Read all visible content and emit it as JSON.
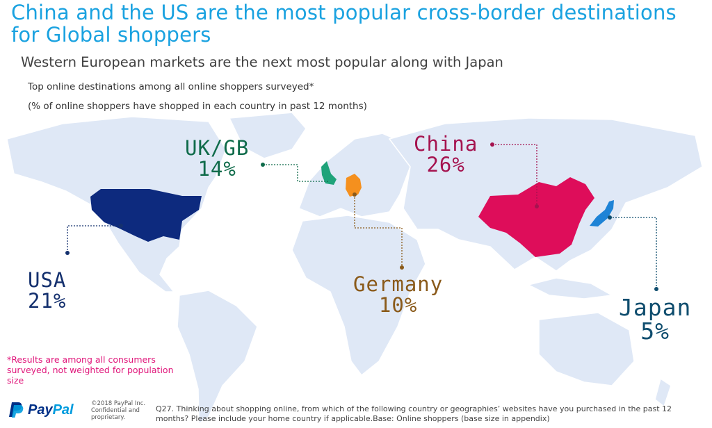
{
  "title": "China and the US are the most popular cross-border destinations for Global shoppers",
  "subtitle": "Western European markets are the next most popular along with Japan",
  "notes": {
    "line1": "Top online destinations among all online shoppers surveyed*",
    "line2": "(% of online shoppers have shopped in each country in past 12 months)"
  },
  "countries": {
    "uk": {
      "name": "UK/GB",
      "value": "14%",
      "color": "#0f6b4a"
    },
    "china": {
      "name": "China",
      "value": "26%",
      "color": "#a5134f"
    },
    "usa": {
      "name": "USA",
      "value": "21%",
      "color": "#14306e"
    },
    "germany": {
      "name": "Germany",
      "value": "10%",
      "color": "#8a5a1a"
    },
    "japan": {
      "name": "Japan",
      "value": "5%",
      "color": "#0f4d6e"
    }
  },
  "highlight_colors": {
    "usa": "#0d2a7e",
    "china": "#de0d5a",
    "uk": "#1fa37a",
    "germany": "#f5901e",
    "japan": "#1e83d6",
    "map": "#dfe8f6"
  },
  "disclaimer": "*Results are among all consumers surveyed, not weighted for population size",
  "footer": {
    "brand": "PayPal",
    "brand_icon": "paypal-logo-icon",
    "copyright": "©2018 PayPal Inc. Confidential and proprietary.",
    "question": "Q27. Thinking about shopping online, from which of the following country or geographies’ websites have you purchased in the past 12 months? Please include your home country if applicable.Base: Online shoppers (base size in appendix)"
  }
}
